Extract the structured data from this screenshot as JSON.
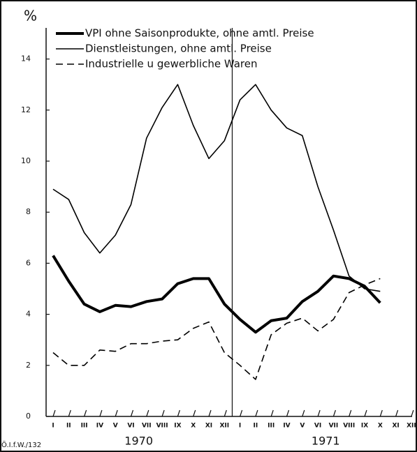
{
  "chart_data": {
    "type": "line",
    "y_label": "%",
    "source": "Ö.I.f.W./132",
    "categories": [
      "I",
      "II",
      "III",
      "IV",
      "V",
      "VI",
      "VII",
      "VIII",
      "IX",
      "X",
      "XI",
      "XII",
      "I",
      "II",
      "III",
      "IV",
      "V",
      "VI",
      "VII",
      "VIII",
      "IX",
      "X",
      "XI",
      "XII"
    ],
    "groups": [
      {
        "label": "1970",
        "from": 0,
        "to": 11
      },
      {
        "label": "1971",
        "from": 12,
        "to": 23
      }
    ],
    "ylim": [
      0,
      15
    ],
    "yticks": [
      0,
      2,
      4,
      6,
      8,
      10,
      12,
      14
    ],
    "series": [
      {
        "name": "VPI ohne Saisonprodukte, ohne amtl. Preise",
        "color": "#000000",
        "width": 4,
        "dash": "none",
        "values": [
          6.3,
          5.3,
          4.4,
          4.1,
          4.35,
          4.3,
          4.5,
          4.6,
          5.2,
          5.4,
          5.4,
          4.4,
          3.8,
          3.3,
          3.75,
          3.85,
          4.5,
          4.9,
          5.5,
          5.4,
          5.1,
          4.45,
          null,
          null
        ]
      },
      {
        "name": "Dienstleistungen, ohne amtl. Preise",
        "color": "#000000",
        "width": 1.6,
        "dash": "none",
        "values": [
          8.9,
          8.5,
          7.2,
          6.4,
          7.1,
          8.3,
          10.9,
          12.1,
          13.0,
          11.4,
          10.1,
          10.8,
          12.4,
          13.0,
          12.0,
          11.3,
          11.0,
          9.0,
          7.3,
          5.5,
          5.0,
          4.9,
          null,
          null
        ]
      },
      {
        "name": "Industrielle u gewerbliche Waren",
        "color": "#000000",
        "width": 1.6,
        "dash": "10 6",
        "values": [
          2.5,
          2.0,
          2.0,
          2.6,
          2.55,
          2.85,
          2.85,
          2.95,
          3.0,
          3.45,
          3.7,
          2.5,
          2.0,
          1.45,
          3.2,
          3.65,
          3.85,
          3.35,
          3.8,
          4.85,
          5.15,
          5.4,
          null,
          null
        ]
      }
    ]
  }
}
